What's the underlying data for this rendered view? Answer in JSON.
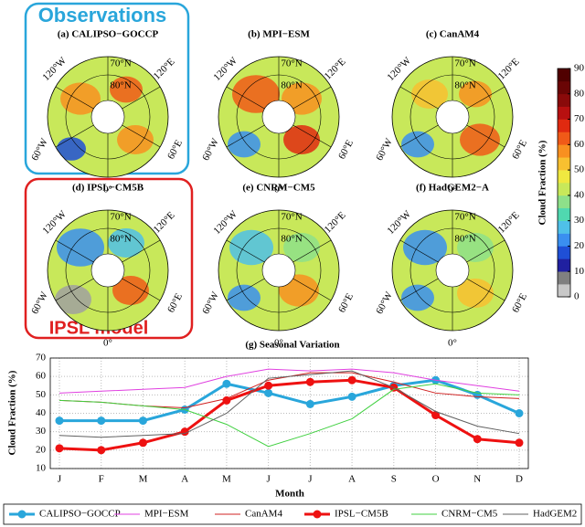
{
  "annotations": {
    "observations": "Observations",
    "model": "IPSL model"
  },
  "maps": {
    "panels": [
      "(a) CALIPSO−GOCCP",
      "(b) MPI−ESM",
      "(c) CanAM4",
      "(d) IPSL−CM5B",
      "(e) CNRM−CM5",
      "(f) HadGEM2−A"
    ],
    "labels": [
      "120°W",
      "60°W",
      "0°",
      "60°E",
      "120°E",
      "70°N",
      "80°N"
    ]
  },
  "colorbar": {
    "label": "Cloud Fraction (%)",
    "lim": [
      0,
      90
    ],
    "ticks": [
      0,
      10,
      20,
      30,
      40,
      50,
      60,
      70,
      80,
      90
    ],
    "colors": [
      "#c8c8c8",
      "#808080",
      "#2020a0",
      "#1f4fd6",
      "#3a8ff0",
      "#4fc0e8",
      "#50d8b0",
      "#8ee08a",
      "#c8e85a",
      "#f0e840",
      "#f8c030",
      "#f89020",
      "#f05a18",
      "#e02a10",
      "#b81010",
      "#8a0a0a",
      "#6a0505",
      "#500000"
    ]
  },
  "chart_data": {
    "type": "line",
    "title": "(g) Seasonal Variation",
    "x_label": "Month",
    "y_label": "Cloud Fraction (%)",
    "categories": [
      "J",
      "F",
      "M",
      "A",
      "M",
      "J",
      "J",
      "A",
      "S",
      "O",
      "N",
      "D"
    ],
    "ylim": [
      10,
      70
    ],
    "yticks": [
      10,
      20,
      30,
      40,
      50,
      60,
      70
    ],
    "grid": true,
    "series": [
      {
        "name": "CALIPSO−GOCCP",
        "color": "#29a6db",
        "width": 3,
        "marker": true,
        "values": [
          36,
          36,
          36,
          42,
          56,
          51,
          45,
          49,
          55,
          58,
          50,
          40
        ]
      },
      {
        "name": "MPI−ESM",
        "color": "#e040e0",
        "width": 1,
        "marker": false,
        "values": [
          51,
          52,
          53,
          54,
          60,
          64,
          63,
          64,
          62,
          58,
          55,
          52
        ]
      },
      {
        "name": "CanAM4",
        "color": "#d02020",
        "width": 1,
        "marker": false,
        "values": [
          47,
          46,
          44,
          43,
          48,
          58,
          62,
          62,
          57,
          51,
          49,
          48
        ]
      },
      {
        "name": "IPSL−CM5B",
        "color": "#ee1111",
        "width": 3,
        "marker": true,
        "values": [
          21,
          20,
          24,
          30,
          47,
          55,
          57,
          58,
          54,
          39,
          26,
          24
        ]
      },
      {
        "name": "CNRM−CM5",
        "color": "#40d040",
        "width": 1,
        "marker": false,
        "values": [
          47,
          46,
          44,
          42,
          34,
          22,
          29,
          37,
          53,
          56,
          51,
          50
        ]
      },
      {
        "name": "HadGEM2",
        "color": "#606060",
        "width": 1,
        "marker": false,
        "values": [
          28,
          27,
          28,
          29,
          40,
          59,
          61,
          63,
          54,
          41,
          33,
          29
        ]
      }
    ]
  }
}
